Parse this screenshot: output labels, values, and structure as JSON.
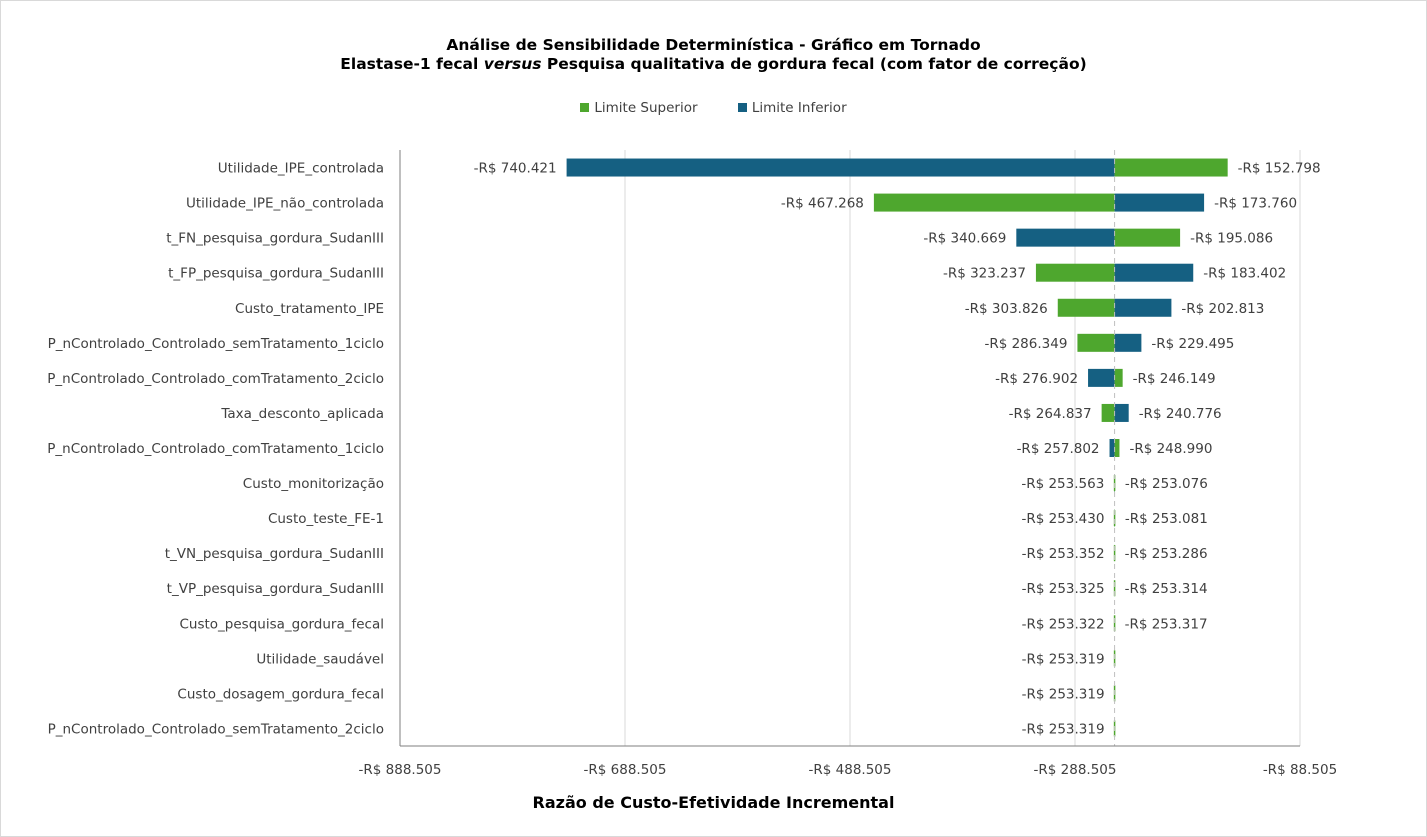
{
  "chart_data": {
    "type": "bar",
    "subtype": "tornado",
    "orientation": "horizontal",
    "title_line1": "Análise de Sensibilidade Determinística - Gráfico em Tornado",
    "title_line2_part1": "Elastase-1 fecal ",
    "title_line2_italic": "versus",
    "title_line2_part2": " Pesquisa qualitativa de gordura fecal (com fator de correção)",
    "xlabel": "Razão de Custo-Efetividade Incremental",
    "ylabel": "",
    "base_value": -253.319,
    "xlim": [
      -888.505,
      -88.505
    ],
    "x_ticks": [
      -888.505,
      -688.505,
      -488.505,
      -288.505,
      -88.505
    ],
    "x_tick_labels": [
      "-R$ 888.505",
      "-R$ 688.505",
      "-R$ 488.505",
      "-R$ 288.505",
      "-R$ 88.505"
    ],
    "grid": "vertical",
    "legend_position": "top",
    "colors": {
      "upper": "#4ea72e",
      "lower": "#156082",
      "grid": "#d9d9d9",
      "axis": "#7f7f7f",
      "base_line": "#bfbfbf"
    },
    "series": [
      {
        "key": "upper",
        "name": "Limite Superior",
        "color": "#4ea72e"
      },
      {
        "key": "lower",
        "name": "Limite Inferior",
        "color": "#156082"
      }
    ],
    "categories": [
      "Utilidade_IPE_controlada",
      "Utilidade_IPE_não_controlada",
      "t_FN_pesquisa_gordura_SudanIII",
      "t_FP_pesquisa_gordura_SudanIII",
      "Custo_tratamento_IPE",
      "P_nControlado_Controlado_semTratamento_1ciclo",
      "P_nControlado_Controlado_comTratamento_2ciclo",
      "Taxa_desconto_aplicada",
      "P_nControlado_Controlado_comTratamento_1ciclo",
      "Custo_monitorização",
      "Custo_teste_FE-1",
      "t_VN_pesquisa_gordura_SudanIII",
      "t_VP_pesquisa_gordura_SudanIII",
      "Custo_pesquisa_gordura_fecal",
      "Utilidade_saudável",
      "Custo_dosagem_gordura_fecal",
      "P_nControlado_Controlado_semTratamento_2ciclo"
    ],
    "rows": [
      {
        "left_value": -740.421,
        "left_series": "lower",
        "left_label": "-R$ 740.421",
        "right_value": -152.798,
        "right_series": "upper",
        "right_label": "-R$ 152.798"
      },
      {
        "left_value": -467.268,
        "left_series": "upper",
        "left_label": "-R$ 467.268",
        "right_value": -173.76,
        "right_series": "lower",
        "right_label": "-R$ 173.760"
      },
      {
        "left_value": -340.669,
        "left_series": "lower",
        "left_label": "-R$ 340.669",
        "right_value": -195.086,
        "right_series": "upper",
        "right_label": "-R$ 195.086"
      },
      {
        "left_value": -323.237,
        "left_series": "upper",
        "left_label": "-R$ 323.237",
        "right_value": -183.402,
        "right_series": "lower",
        "right_label": "-R$ 183.402"
      },
      {
        "left_value": -303.826,
        "left_series": "upper",
        "left_label": "-R$ 303.826",
        "right_value": -202.813,
        "right_series": "lower",
        "right_label": "-R$ 202.813"
      },
      {
        "left_value": -286.349,
        "left_series": "upper",
        "left_label": "-R$ 286.349",
        "right_value": -229.495,
        "right_series": "lower",
        "right_label": "-R$ 229.495"
      },
      {
        "left_value": -276.902,
        "left_series": "lower",
        "left_label": "-R$ 276.902",
        "right_value": -246.149,
        "right_series": "upper",
        "right_label": "-R$ 246.149"
      },
      {
        "left_value": -264.837,
        "left_series": "upper",
        "left_label": "-R$ 264.837",
        "right_value": -240.776,
        "right_series": "lower",
        "right_label": "-R$ 240.776"
      },
      {
        "left_value": -257.802,
        "left_series": "lower",
        "left_label": "-R$ 257.802",
        "right_value": -248.99,
        "right_series": "upper",
        "right_label": "-R$ 248.990"
      },
      {
        "left_value": -253.563,
        "left_series": "lower",
        "left_label": "-R$ 253.563",
        "right_value": -253.076,
        "right_series": "upper",
        "right_label": "-R$ 253.076"
      },
      {
        "left_value": -253.43,
        "left_series": "lower",
        "left_label": "-R$ 253.430",
        "right_value": -253.081,
        "right_series": "upper",
        "right_label": "-R$ 253.081"
      },
      {
        "left_value": -253.352,
        "left_series": "lower",
        "left_label": "-R$ 253.352",
        "right_value": -253.286,
        "right_series": "upper",
        "right_label": "-R$ 253.286"
      },
      {
        "left_value": -253.325,
        "left_series": "lower",
        "left_label": "-R$ 253.325",
        "right_value": -253.314,
        "right_series": "upper",
        "right_label": "-R$ 253.314"
      },
      {
        "left_value": -253.322,
        "left_series": "lower",
        "left_label": "-R$ 253.322",
        "right_value": -253.317,
        "right_series": "upper",
        "right_label": "-R$ 253.317"
      },
      {
        "left_value": -253.319,
        "left_series": "lower",
        "left_label": "-R$ 253.319",
        "right_value": -253.319,
        "right_series": "upper",
        "right_label": ""
      },
      {
        "left_value": -253.319,
        "left_series": "lower",
        "left_label": "-R$ 253.319",
        "right_value": -253.319,
        "right_series": "upper",
        "right_label": ""
      },
      {
        "left_value": -253.319,
        "left_series": "lower",
        "left_label": "-R$ 253.319",
        "right_value": -253.319,
        "right_series": "upper",
        "right_label": ""
      }
    ]
  }
}
